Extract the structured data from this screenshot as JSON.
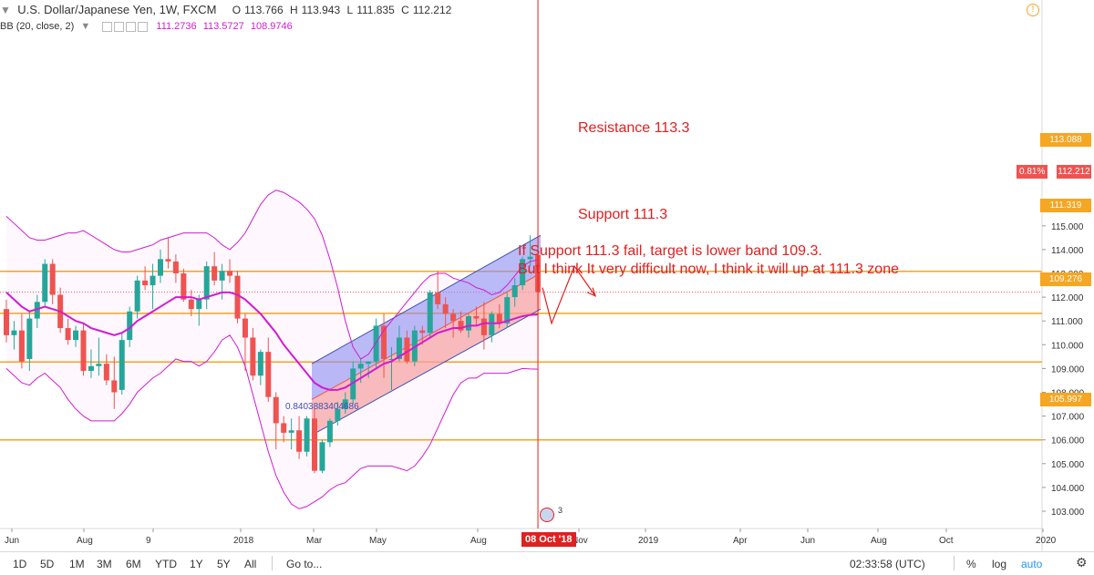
{
  "header": {
    "symbol": "U.S. Dollar/Japanese Yen, 1W, FXCM",
    "o_label": "O",
    "open": "113.766",
    "h_label": "H",
    "high": "113.943",
    "l_label": "L",
    "low": "111.835",
    "c_label": "C",
    "close": "112.212"
  },
  "indicator": {
    "name": "BB (20, close, 2)",
    "basis": "111.2736",
    "upper": "113.5727",
    "lower": "108.9746"
  },
  "annotations": {
    "resistance": "Resistance 113.3",
    "support": "Support 111.3",
    "note1": "If Support 111.3 fail, target is lower band 109.3.",
    "note2": "But I think It very difficult now, I think it will up at 111.3 zone",
    "fib_label": "0.8403883404686"
  },
  "price_tags": [
    {
      "label": "113.088"
    },
    {
      "label": "112.212",
      "change": "0.81%"
    },
    {
      "label": "111.319"
    },
    {
      "label": "109.276"
    },
    {
      "label": "105.997"
    }
  ],
  "crosshair": {
    "date": "08 Oct '18",
    "events": "3"
  },
  "toolbar": {
    "ranges": [
      "1D",
      "5D",
      "1M",
      "3M",
      "6M",
      "YTD",
      "1Y",
      "5Y",
      "All"
    ],
    "goto": "Go to...",
    "clock": "02:33:58 (UTC)",
    "percent": "%",
    "log": "log",
    "auto": "auto"
  },
  "colors": {
    "up": "#26a69a",
    "down": "#ef5350",
    "bollinger": "#d21bd2",
    "hline": "#f5a623",
    "crosshair": "#e02020",
    "channel_upper_fill": "#8c8cf0",
    "channel_lower_fill": "#f5a0a0",
    "channel_line": "#3f51b5"
  },
  "chart_data": {
    "type": "candlestick",
    "title": "U.S. Dollar/Japanese Yen, 1W, FXCM",
    "y_ticks": [
      103,
      104,
      105,
      106,
      107,
      108,
      109,
      110,
      111,
      112,
      113,
      114,
      115,
      116
    ],
    "y_tick_labels": [
      "103.000",
      "104.000",
      "105.000",
      "106.000",
      "107.000",
      "108.000",
      "109.000",
      "110.000",
      "111.000",
      "112.000",
      "113.000",
      "114.000",
      "115.000",
      "116.000"
    ],
    "x_tick_labels": [
      "Jun",
      "Aug",
      "9",
      "2018",
      "Mar",
      "May",
      "Aug",
      "Nov",
      "2019",
      "Apr",
      "Jun",
      "Aug",
      "Oct",
      "2020"
    ],
    "horizontal_levels": [
      113.088,
      111.319,
      109.276,
      105.997
    ],
    "last_price": 112.212,
    "candles": [
      [
        111.5,
        111.9,
        110.1,
        110.4
      ],
      [
        110.4,
        111.0,
        109.8,
        110.6
      ],
      [
        110.6,
        111.3,
        109.0,
        109.3
      ],
      [
        109.4,
        111.4,
        108.9,
        111.1
      ],
      [
        111.1,
        112.1,
        110.7,
        111.8
      ],
      [
        111.8,
        113.6,
        111.6,
        113.4
      ],
      [
        113.4,
        113.6,
        111.7,
        112.1
      ],
      [
        112.1,
        112.4,
        110.5,
        110.7
      ],
      [
        110.7,
        111.1,
        110.0,
        110.2
      ],
      [
        110.2,
        110.8,
        109.9,
        110.6
      ],
      [
        110.6,
        110.9,
        108.7,
        108.9
      ],
      [
        108.9,
        109.8,
        108.6,
        109.1
      ],
      [
        109.1,
        110.3,
        108.7,
        109.2
      ],
      [
        109.2,
        109.6,
        108.3,
        108.5
      ],
      [
        108.5,
        109.5,
        107.3,
        108.0
      ],
      [
        108.1,
        110.5,
        107.9,
        110.2
      ],
      [
        110.2,
        111.6,
        109.9,
        111.4
      ],
      [
        111.4,
        112.9,
        111.1,
        112.7
      ],
      [
        112.7,
        113.3,
        112.3,
        112.5
      ],
      [
        112.5,
        113.4,
        111.5,
        112.9
      ],
      [
        112.9,
        114.0,
        112.6,
        113.6
      ],
      [
        113.6,
        114.5,
        113.2,
        113.5
      ],
      [
        113.5,
        113.8,
        112.6,
        113.0
      ],
      [
        113.0,
        113.2,
        111.8,
        111.9
      ],
      [
        111.9,
        112.3,
        111.2,
        111.5
      ],
      [
        111.5,
        112.1,
        110.8,
        111.9
      ],
      [
        111.9,
        113.5,
        111.5,
        113.3
      ],
      [
        113.3,
        113.9,
        112.5,
        112.7
      ],
      [
        112.7,
        113.4,
        111.9,
        113.1
      ],
      [
        113.1,
        113.6,
        112.6,
        112.9
      ],
      [
        112.9,
        113.1,
        110.9,
        111.1
      ],
      [
        111.1,
        111.3,
        108.9,
        110.3
      ],
      [
        110.3,
        110.7,
        108.5,
        108.7
      ],
      [
        108.7,
        109.8,
        108.3,
        109.7
      ],
      [
        109.7,
        110.3,
        107.6,
        107.8
      ],
      [
        107.8,
        108.0,
        105.6,
        106.7
      ],
      [
        106.7,
        107.0,
        105.9,
        106.3
      ],
      [
        106.3,
        106.9,
        105.6,
        106.4
      ],
      [
        106.4,
        107.0,
        105.2,
        105.5
      ],
      [
        105.5,
        107.0,
        105.3,
        106.9
      ],
      [
        106.9,
        107.3,
        104.6,
        104.7
      ],
      [
        104.7,
        106.0,
        104.6,
        105.9
      ],
      [
        105.9,
        106.9,
        105.7,
        106.8
      ],
      [
        106.8,
        107.6,
        106.6,
        107.3
      ],
      [
        107.3,
        108.0,
        107.1,
        107.7
      ],
      [
        107.7,
        109.3,
        107.5,
        109.0
      ],
      [
        109.0,
        109.4,
        108.4,
        109.2
      ],
      [
        109.2,
        109.3,
        108.6,
        109.3
      ],
      [
        109.3,
        111.1,
        109.0,
        110.8
      ],
      [
        110.8,
        111.3,
        108.6,
        109.4
      ],
      [
        109.4,
        109.9,
        108.1,
        109.4
      ],
      [
        109.4,
        110.8,
        109.3,
        110.3
      ],
      [
        110.3,
        110.6,
        109.2,
        109.3
      ],
      [
        109.3,
        110.8,
        109.1,
        110.6
      ],
      [
        110.6,
        110.8,
        110.0,
        110.5
      ],
      [
        110.5,
        112.3,
        110.3,
        112.2
      ],
      [
        112.2,
        113.1,
        111.5,
        111.7
      ],
      [
        111.7,
        112.0,
        110.7,
        111.3
      ],
      [
        111.3,
        111.5,
        110.3,
        111.0
      ],
      [
        111.0,
        111.4,
        110.5,
        110.6
      ],
      [
        110.6,
        111.3,
        110.3,
        111.2
      ],
      [
        111.2,
        111.6,
        110.8,
        111.1
      ],
      [
        111.1,
        111.8,
        109.8,
        110.4
      ],
      [
        110.4,
        111.4,
        110.1,
        111.3
      ],
      [
        111.3,
        111.7,
        110.7,
        110.9
      ],
      [
        110.9,
        112.2,
        110.7,
        112.0
      ],
      [
        112.0,
        112.8,
        111.6,
        112.5
      ],
      [
        112.5,
        113.7,
        112.3,
        113.6
      ],
      [
        113.6,
        114.6,
        113.3,
        113.7
      ],
      [
        113.766,
        113.943,
        111.835,
        112.212
      ]
    ],
    "bollinger": {
      "upper": [
        115.4,
        115.1,
        114.8,
        114.5,
        114.4,
        114.4,
        114.5,
        114.6,
        114.7,
        114.7,
        114.8,
        114.6,
        114.4,
        114.2,
        114.0,
        113.9,
        113.9,
        114.0,
        114.1,
        114.2,
        114.4,
        114.5,
        114.6,
        114.7,
        114.7,
        114.7,
        114.7,
        114.5,
        114.2,
        114.0,
        114.3,
        114.7,
        115.3,
        115.9,
        116.3,
        116.5,
        116.4,
        116.2,
        116.0,
        115.7,
        115.3,
        114.6,
        113.6,
        112.4,
        111.0,
        109.9,
        109.4,
        109.6,
        110.1,
        110.6,
        111.0,
        111.4,
        111.8,
        112.2,
        112.6,
        112.9,
        113.0,
        113.0,
        112.8,
        112.7,
        112.6,
        112.4,
        112.3,
        112.1,
        112.2,
        112.5,
        112.9,
        113.3,
        113.5,
        113.57
      ],
      "basis": [
        112.2,
        111.9,
        111.6,
        111.4,
        111.5,
        111.6,
        111.5,
        111.4,
        111.2,
        111.0,
        110.9,
        110.7,
        110.6,
        110.5,
        110.4,
        110.5,
        110.7,
        111.0,
        111.2,
        111.4,
        111.6,
        111.8,
        112.0,
        112.0,
        112.0,
        111.9,
        112.0,
        112.1,
        112.2,
        112.2,
        112.1,
        111.9,
        111.6,
        111.3,
        110.9,
        110.5,
        110.0,
        109.6,
        109.2,
        108.8,
        108.4,
        108.2,
        108.1,
        108.1,
        108.2,
        108.4,
        108.6,
        108.8,
        109.0,
        109.2,
        109.3,
        109.5,
        109.7,
        109.9,
        110.1,
        110.3,
        110.5,
        110.6,
        110.7,
        110.7,
        110.8,
        110.8,
        110.9,
        110.9,
        110.9,
        111.0,
        111.1,
        111.2,
        111.25,
        111.27
      ],
      "lower": [
        109.0,
        108.7,
        108.4,
        108.3,
        108.6,
        108.8,
        108.5,
        108.2,
        107.7,
        107.3,
        107.0,
        106.8,
        106.8,
        106.8,
        106.8,
        107.1,
        107.5,
        108.0,
        108.3,
        108.6,
        108.8,
        109.1,
        109.4,
        109.3,
        109.3,
        109.1,
        109.3,
        109.7,
        110.2,
        110.4,
        109.9,
        109.1,
        107.9,
        106.7,
        105.5,
        104.5,
        103.8,
        103.3,
        103.1,
        103.2,
        103.4,
        103.6,
        103.9,
        104.1,
        104.2,
        104.5,
        104.8,
        104.9,
        104.9,
        104.9,
        104.9,
        104.8,
        104.7,
        104.9,
        105.3,
        105.8,
        106.5,
        107.2,
        107.9,
        108.4,
        108.6,
        108.6,
        108.8,
        108.8,
        108.8,
        108.8,
        108.9,
        109.0,
        108.98,
        108.97
      ]
    },
    "channel": {
      "start_index": 40,
      "end_index": 69,
      "upper_start": 109.2,
      "upper_end": 114.6,
      "mid_start": 107.7,
      "mid_end": 113.0,
      "lower_start": 106.2,
      "lower_end": 111.5
    },
    "crosshair_index": 69
  }
}
